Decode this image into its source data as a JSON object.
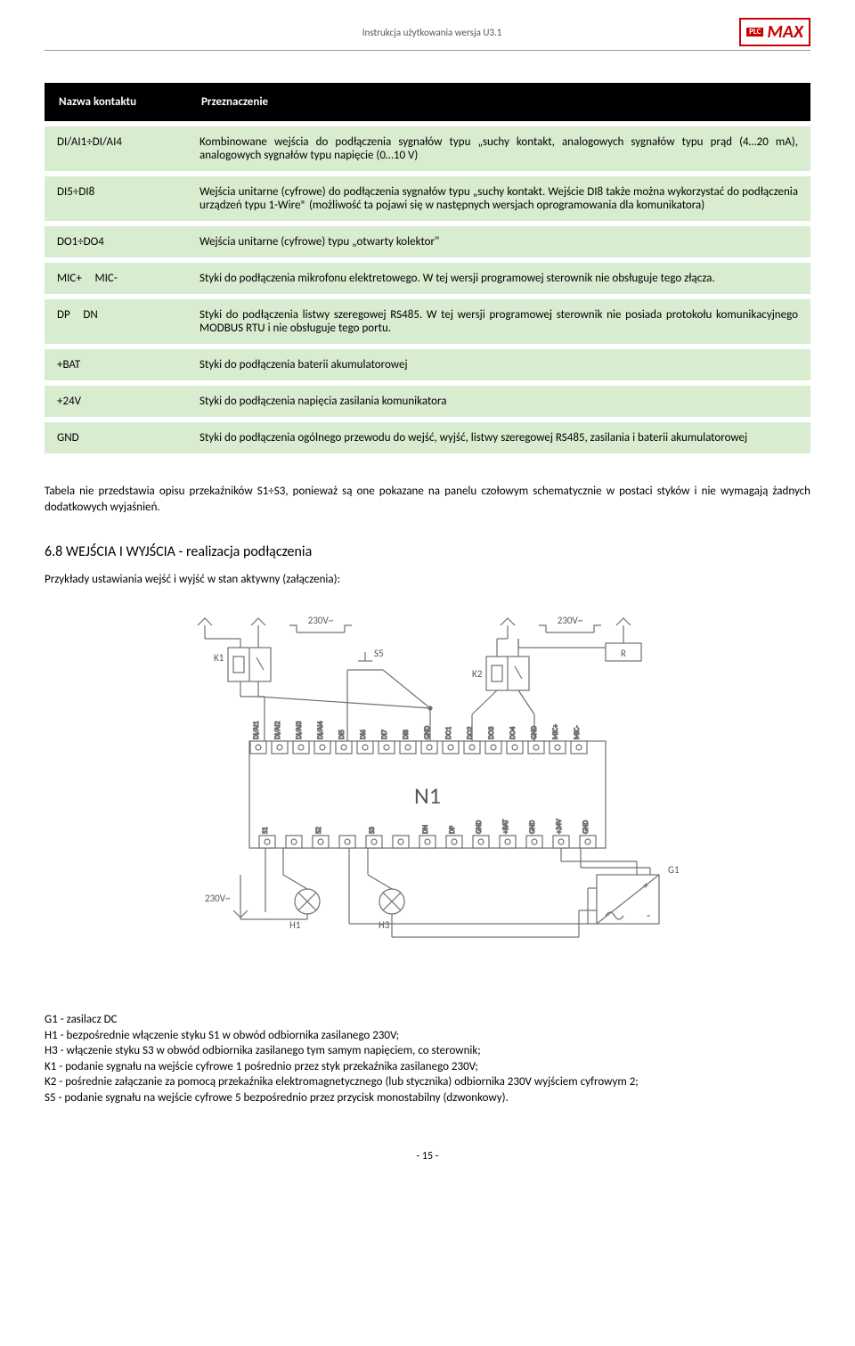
{
  "header": {
    "title": "Instrukcja użytkowania  wersja U3.1",
    "logo_plc": "PLC",
    "logo_max": "MAX"
  },
  "table": {
    "col1_header": "Nazwa kontaktu",
    "col2_header": "Przeznaczenie",
    "rows": [
      {
        "name": "DI/AI1÷DI/AI4",
        "desc": "Kombinowane wejścia do podłączenia sygnałów typu „suchy kontakt, analogowych sygnałów typu prąd (4…20 mA), analogowych sygnałów typu napięcie (0…10 V)"
      },
      {
        "name": "DI5÷DI8",
        "desc": "Wejścia unitarne (cyfrowe) do podłączenia sygnałów typu „suchy kontakt. Wejście DI8 także można wykorzystać do podłączenia urządzeń typu 1-Wire® (możliwość ta pojawi się w następnych wersjach oprogramowania dla komunikatora)"
      },
      {
        "name": "DO1÷DO4",
        "desc": "Wejścia unitarne (cyfrowe) typu „otwarty kolektor\""
      },
      {
        "name": "MIC+     MIC-",
        "desc": "Styki do podłączenia mikrofonu elektretowego. W tej wersji programowej sterownik nie obsługuje tego złącza."
      },
      {
        "name": "DP     DN",
        "desc": "Styki do podłączenia listwy szeregowej RS485. W tej wersji programowej sterownik nie posiada protokołu komunikacyjnego MODBUS RTU i nie obsługuje tego portu."
      },
      {
        "name": "+BAT",
        "desc": "Styki do podłączenia baterii akumulatorowej"
      },
      {
        "name": "+24V",
        "desc": "Styki do podłączenia napięcia zasilania komunikatora"
      },
      {
        "name": "GND",
        "desc": "Styki do podłączenia ogólnego przewodu do wejść, wyjść, listwy szeregowej RS485, zasilania i baterii akumulatorowej"
      }
    ]
  },
  "para_after_table": "Tabela nie przedstawia opisu przekaźników S1÷S3, ponieważ są one pokazane na panelu czołowym schematycznie w postaci styków i nie wymagają żadnych dodatkowych wyjaśnień.",
  "section_heading": "6.8  WEJŚCIA I WYJŚCIA - realizacja podłączenia",
  "section_sub": "Przykłady ustawiania wejść i wyjść w stan aktywny (załączenia):",
  "diagram": {
    "n1_label": "N1",
    "v230_left": "230V~",
    "v230_right": "230V~",
    "v230_bottom": "230V~",
    "k1": "K1",
    "k2": "K2",
    "s5": "S5",
    "r": "R",
    "h1": "H1",
    "h3": "H3",
    "g1": "G1",
    "top_terms": [
      "DI/AI1",
      "DI/AI2",
      "DI/AI3",
      "DI/AI4",
      "DI5",
      "DI6",
      "DI7",
      "DI8",
      "GND",
      "DO1",
      "DO2",
      "DO3",
      "DO4",
      "GND",
      "MIC+",
      "MIC-"
    ],
    "bot_terms": [
      "S1",
      "",
      "S2",
      "",
      "S3",
      "",
      "DN",
      "DP",
      "GND",
      "+BAT",
      "GND",
      "+24V",
      "GND"
    ]
  },
  "legend": {
    "g1": "G1 - zasilacz DC",
    "h1": "H1 - bezpośrednie włączenie styku S1 w obwód odbiornika zasilanego 230V;",
    "h3": "H3 - włączenie styku S3 w obwód odbiornika zasilanego tym samym napięciem, co sterownik;",
    "k1": "K1 - podanie sygnału na wejście cyfrowe 1 pośrednio przez styk przekaźnika zasilanego 230V;",
    "k2": "K2 - pośrednie załączanie za pomocą przekaźnika elektromagnetycznego (lub stycznika) odbiornika 230V wyjściem cyfrowym 2;",
    "s5": "S5 - podanie sygnału na wejście cyfrowe 5 bezpośrednio przez przycisk monostabilny (dzwonkowy)."
  },
  "footer": "- 15 -",
  "colors": {
    "row_bg": "#d8ecd0",
    "header_bg": "#000000",
    "logo_red": "#c00000",
    "diagram_stroke": "#707070"
  }
}
